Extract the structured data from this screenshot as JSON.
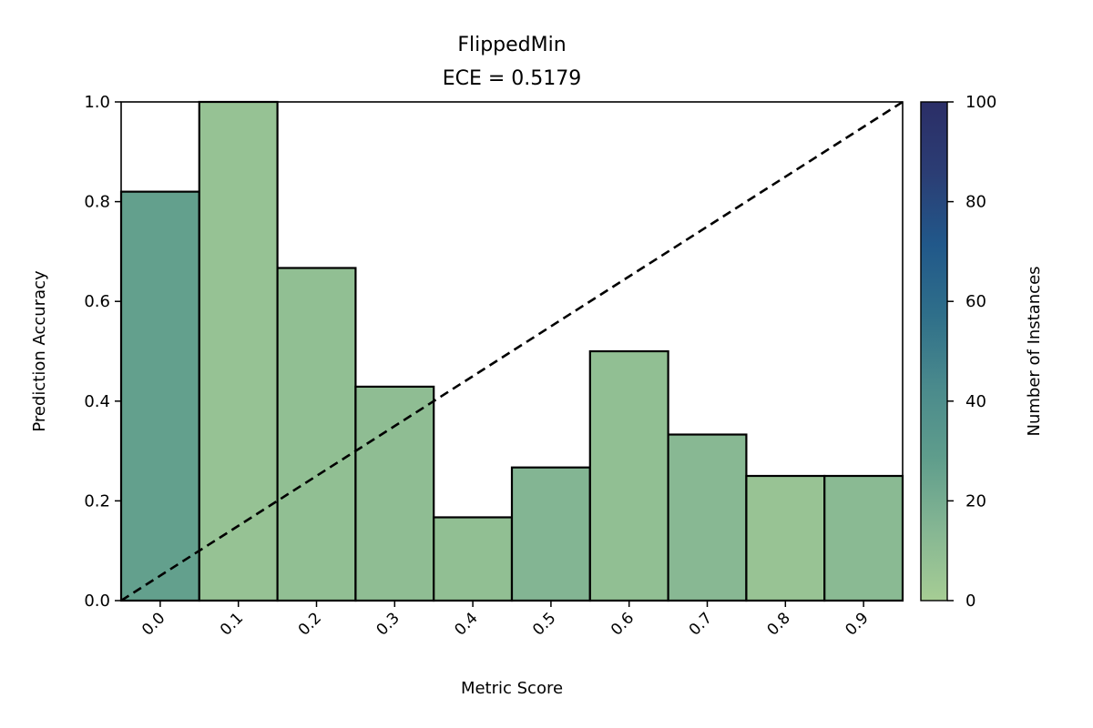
{
  "chart_data": {
    "type": "bar",
    "title": "FlippedMin",
    "subtitle": "ECE = 0.5179",
    "xlabel": "Metric Score",
    "ylabel": "Prediction Accuracy",
    "categories": [
      "0.0",
      "0.1",
      "0.2",
      "0.3",
      "0.4",
      "0.5",
      "0.6",
      "0.7",
      "0.8",
      "0.9"
    ],
    "values": [
      0.82,
      1.0,
      0.667,
      0.429,
      0.167,
      0.267,
      0.5,
      0.333,
      0.25,
      0.25
    ],
    "counts": [
      27,
      7,
      9,
      10,
      9,
      15,
      9,
      13,
      6,
      12
    ],
    "xlim": [
      -0.05,
      0.95
    ],
    "ylim": [
      0,
      1
    ],
    "yticks": [
      "0.0",
      "0.2",
      "0.4",
      "0.6",
      "0.8",
      "1.0"
    ],
    "diagonal": {
      "style": "dashed",
      "color": "#000000",
      "from": [
        -0.05,
        0
      ],
      "to": [
        0.95,
        1
      ]
    },
    "colorbar": {
      "label": "Number of Instances",
      "range": [
        0,
        100
      ],
      "ticks": [
        "0",
        "20",
        "40",
        "60",
        "80",
        "100"
      ],
      "colors": [
        "#a6cd94",
        "#85b693",
        "#5f9d8c",
        "#4a8a8c",
        "#2f6f8a",
        "#21588a",
        "#2b3d74",
        "#2b2e67"
      ]
    },
    "grid": false
  }
}
